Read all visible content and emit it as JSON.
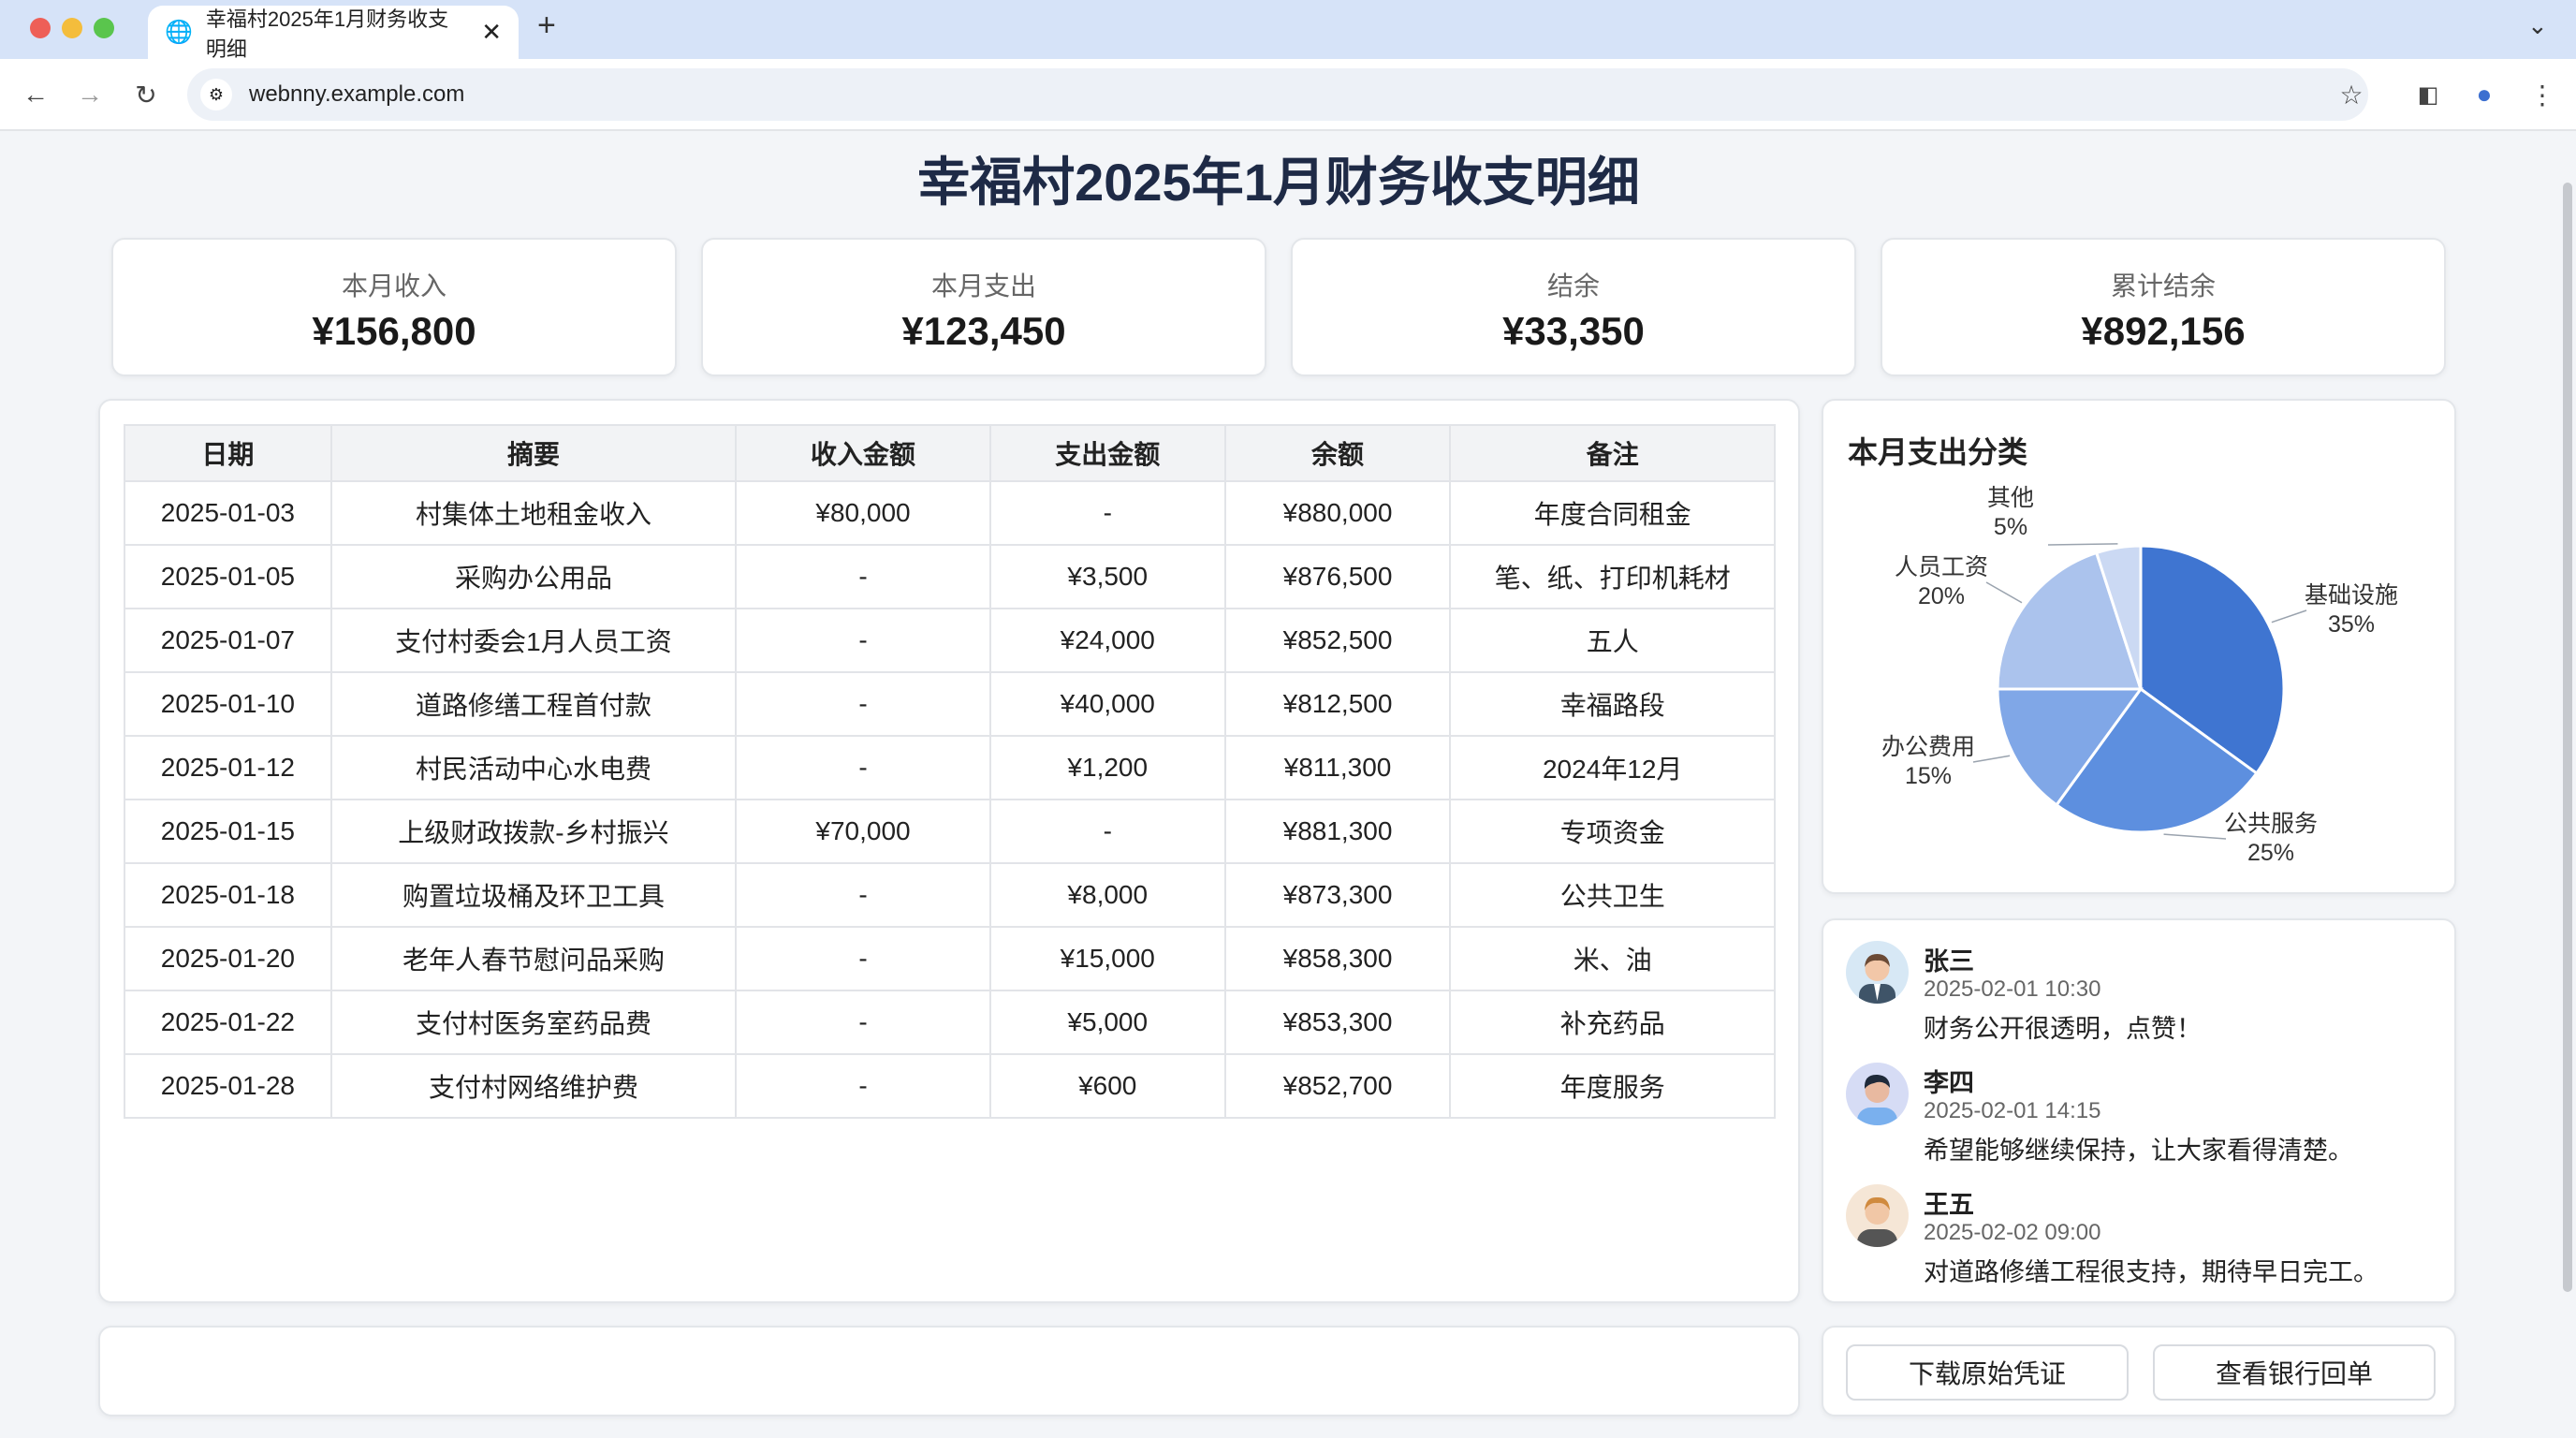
{
  "browser": {
    "tab_title": "幸福村2025年1月财务收支明细",
    "url": "webnny.example.com",
    "icons": [
      "globe-icon",
      "close-icon",
      "plus-icon",
      "back-icon",
      "forward-icon",
      "reload-icon",
      "site-settings-icon",
      "star-icon",
      "sidebar-icon",
      "profile-icon",
      "menu-icon",
      "chevron-down-icon"
    ]
  },
  "page": {
    "title": "幸福村2025年1月财务收支明细"
  },
  "stats": [
    {
      "label": "本月收入",
      "value": "¥156,800"
    },
    {
      "label": "本月支出",
      "value": "¥123,450"
    },
    {
      "label": "结余",
      "value": "¥33,350"
    },
    {
      "label": "累计结余",
      "value": "¥892,156"
    }
  ],
  "table": {
    "headers": [
      "日期",
      "摘要",
      "收入金额",
      "支出金额",
      "余额",
      "备注"
    ],
    "rows": [
      [
        "2025-01-03",
        "村集体土地租金收入",
        "¥80,000",
        "-",
        "¥880,000",
        "年度合同租金"
      ],
      [
        "2025-01-05",
        "采购办公用品",
        "-",
        "¥3,500",
        "¥876,500",
        "笔、纸、打印机耗材"
      ],
      [
        "2025-01-07",
        "支付村委会1月人员工资",
        "-",
        "¥24,000",
        "¥852,500",
        "五人"
      ],
      [
        "2025-01-10",
        "道路修缮工程首付款",
        "-",
        "¥40,000",
        "¥812,500",
        "幸福路段"
      ],
      [
        "2025-01-12",
        "村民活动中心水电费",
        "-",
        "¥1,200",
        "¥811,300",
        "2024年12月"
      ],
      [
        "2025-01-15",
        "上级财政拨款-乡村振兴",
        "¥70,000",
        "-",
        "¥881,300",
        "专项资金"
      ],
      [
        "2025-01-18",
        "购置垃圾桶及环卫工具",
        "-",
        "¥8,000",
        "¥873,300",
        "公共卫生"
      ],
      [
        "2025-01-20",
        "老年人春节慰问品采购",
        "-",
        "¥15,000",
        "¥858,300",
        "米、油"
      ],
      [
        "2025-01-22",
        "支付村医务室药品费",
        "-",
        "¥5,000",
        "¥853,300",
        "补充药品"
      ],
      [
        "2025-01-28",
        "支付村网络维护费",
        "-",
        "¥600",
        "¥852,700",
        "年度服务"
      ]
    ]
  },
  "chart_data": {
    "type": "pie",
    "title": "本月支出分类",
    "slices": [
      {
        "label": "基础设施",
        "value": 35,
        "text": "35%",
        "color": "#3f75d1"
      },
      {
        "label": "公共服务",
        "value": 25,
        "text": "25%",
        "color": "#5d8fdf"
      },
      {
        "label": "办公费用",
        "value": 15,
        "text": "15%",
        "color": "#80a7e7"
      },
      {
        "label": "人员工资",
        "value": 20,
        "text": "20%",
        "color": "#abc3ed"
      },
      {
        "label": "其他",
        "value": 5,
        "text": "5%",
        "color": "#cbd9f3"
      }
    ]
  },
  "comments": [
    {
      "name": "张三",
      "time": "2025-02-01 10:30",
      "text": "财务公开很透明，点赞！"
    },
    {
      "name": "李四",
      "time": "2025-02-01 14:15",
      "text": "希望能够继续保持，让大家看得清楚。"
    },
    {
      "name": "王五",
      "time": "2025-02-02 09:00",
      "text": "对道路修缮工程很支持，期待早日完工。"
    }
  ],
  "actions": {
    "download": "下载原始凭证",
    "bank": "查看银行回单"
  }
}
